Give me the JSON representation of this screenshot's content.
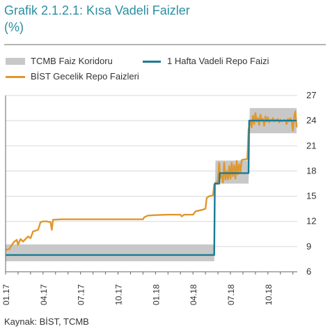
{
  "header": {
    "title": "Grafik 2.1.2.1: Kısa Vadeli Faizler",
    "subtitle": "(%)"
  },
  "legend": {
    "corridor": "TCMB Faiz Koridoru",
    "repo": "1 Hafta Vadeli Repo Faizi",
    "bist": "BİST Gecelik Repo Faizleri"
  },
  "colors": {
    "corridor": "#c8c8c8",
    "repo": "#1a7a94",
    "bist": "#e0972c",
    "grid": "#d8d8d8",
    "axis": "#666666"
  },
  "source": "Kaynak: BİST, TCMB",
  "chart_data": {
    "type": "line",
    "x_axis": {
      "unit": "month-year",
      "range": [
        "2017-01",
        "2018-12"
      ],
      "ticks": [
        "01.17",
        "04.17",
        "07.17",
        "10.17",
        "01.18",
        "04.18",
        "07.18",
        "10.18"
      ],
      "tick_positions": [
        0,
        3,
        6,
        9,
        12,
        15,
        18,
        21
      ]
    },
    "y_axis": {
      "position": "right",
      "range": [
        6,
        27
      ],
      "ticks": [
        "6",
        "9",
        "12",
        "15",
        "18",
        "21",
        "24",
        "27"
      ],
      "tick_values": [
        6,
        9,
        12,
        15,
        18,
        21,
        24,
        27
      ]
    },
    "grid": "horizontal",
    "series": [
      {
        "name": "TCMB Faiz Koridoru",
        "kind": "band",
        "points": [
          {
            "x": 0.0,
            "low": 7.25,
            "high": 9.25
          },
          {
            "x": 16.7,
            "low": 7.25,
            "high": 9.25
          },
          {
            "x": 16.8,
            "low": 16.5,
            "high": 19.25
          },
          {
            "x": 19.45,
            "low": 16.5,
            "high": 19.25
          },
          {
            "x": 19.55,
            "low": 22.5,
            "high": 25.5
          },
          {
            "x": 23.3,
            "low": 22.5,
            "high": 25.5
          }
        ]
      },
      {
        "name": "1 Hafta Vadeli Repo Faizi",
        "kind": "line",
        "points": [
          [
            0.0,
            8.0
          ],
          [
            16.7,
            8.0
          ],
          [
            16.75,
            16.5
          ],
          [
            17.1,
            16.5
          ],
          [
            17.15,
            17.75
          ],
          [
            19.45,
            17.75
          ],
          [
            19.5,
            24.0
          ],
          [
            23.3,
            24.0
          ]
        ]
      },
      {
        "name": "BİST Gecelik Repo Faizleri",
        "kind": "line",
        "points": [
          [
            0.0,
            8.6
          ],
          [
            0.3,
            8.7
          ],
          [
            0.5,
            9.2
          ],
          [
            0.7,
            9.6
          ],
          [
            0.9,
            9.8
          ],
          [
            1.0,
            9.2
          ],
          [
            1.2,
            9.9
          ],
          [
            1.4,
            9.6
          ],
          [
            1.6,
            9.9
          ],
          [
            1.8,
            10.2
          ],
          [
            2.0,
            10.0
          ],
          [
            2.2,
            10.8
          ],
          [
            2.4,
            10.9
          ],
          [
            2.6,
            11.0
          ],
          [
            2.8,
            11.9
          ],
          [
            3.0,
            12.0
          ],
          [
            3.3,
            12.0
          ],
          [
            3.6,
            11.9
          ],
          [
            3.7,
            11.0
          ],
          [
            3.8,
            12.2
          ],
          [
            4.5,
            12.25
          ],
          [
            6.0,
            12.25
          ],
          [
            8.0,
            12.25
          ],
          [
            10.0,
            12.25
          ],
          [
            11.0,
            12.25
          ],
          [
            11.1,
            12.5
          ],
          [
            11.4,
            12.7
          ],
          [
            12.0,
            12.75
          ],
          [
            13.0,
            12.8
          ],
          [
            14.0,
            12.8
          ],
          [
            14.1,
            12.6
          ],
          [
            14.3,
            12.8
          ],
          [
            15.0,
            12.8
          ],
          [
            15.2,
            13.2
          ],
          [
            15.8,
            13.4
          ],
          [
            16.0,
            13.5
          ],
          [
            16.1,
            14.8
          ],
          [
            16.3,
            15.0
          ],
          [
            16.6,
            15.1
          ],
          [
            16.7,
            16.4
          ],
          [
            16.8,
            16.6
          ],
          [
            16.9,
            16.5
          ],
          [
            17.0,
            17.0
          ],
          [
            17.1,
            19.0
          ],
          [
            17.2,
            17.2
          ],
          [
            17.3,
            17.5
          ],
          [
            17.4,
            16.6
          ],
          [
            17.5,
            19.0
          ],
          [
            17.6,
            17.0
          ],
          [
            17.7,
            18.0
          ],
          [
            17.8,
            17.0
          ],
          [
            17.9,
            18.6
          ],
          [
            18.0,
            17.1
          ],
          [
            18.1,
            19.0
          ],
          [
            18.2,
            17.4
          ],
          [
            18.3,
            18.7
          ],
          [
            18.4,
            17.1
          ],
          [
            18.5,
            19.2
          ],
          [
            18.6,
            17.6
          ],
          [
            18.7,
            18.8
          ],
          [
            18.8,
            17.9
          ],
          [
            18.9,
            19.3
          ],
          [
            19.0,
            19.35
          ],
          [
            19.2,
            19.4
          ],
          [
            19.35,
            19.4
          ],
          [
            19.45,
            22.9
          ],
          [
            19.55,
            23.6
          ],
          [
            19.65,
            23.9
          ],
          [
            19.7,
            23.2
          ],
          [
            19.8,
            24.6
          ],
          [
            19.9,
            23.6
          ],
          [
            20.0,
            24.9
          ],
          [
            20.1,
            23.9
          ],
          [
            20.2,
            24.3
          ],
          [
            20.3,
            23.5
          ],
          [
            20.4,
            24.7
          ],
          [
            20.5,
            24.0
          ],
          [
            20.6,
            24.2
          ],
          [
            20.7,
            23.4
          ],
          [
            20.8,
            24.5
          ],
          [
            20.9,
            23.9
          ],
          [
            21.0,
            24.4
          ],
          [
            21.1,
            23.8
          ],
          [
            21.2,
            24.1
          ],
          [
            21.3,
            24.0
          ],
          [
            21.4,
            24.3
          ],
          [
            21.5,
            23.9
          ],
          [
            21.6,
            24.1
          ],
          [
            21.7,
            24.0
          ],
          [
            21.8,
            24.2
          ],
          [
            21.9,
            23.8
          ],
          [
            22.0,
            24.1
          ],
          [
            22.1,
            23.9
          ],
          [
            22.2,
            24.0
          ],
          [
            22.3,
            24.1
          ],
          [
            22.4,
            24.0
          ],
          [
            22.5,
            23.6
          ],
          [
            22.6,
            24.2
          ],
          [
            22.7,
            23.9
          ],
          [
            22.8,
            24.3
          ],
          [
            22.9,
            24.0
          ],
          [
            23.0,
            22.8
          ],
          [
            23.1,
            24.4
          ],
          [
            23.2,
            25.1
          ],
          [
            23.3,
            23.2
          ]
        ]
      }
    ]
  }
}
